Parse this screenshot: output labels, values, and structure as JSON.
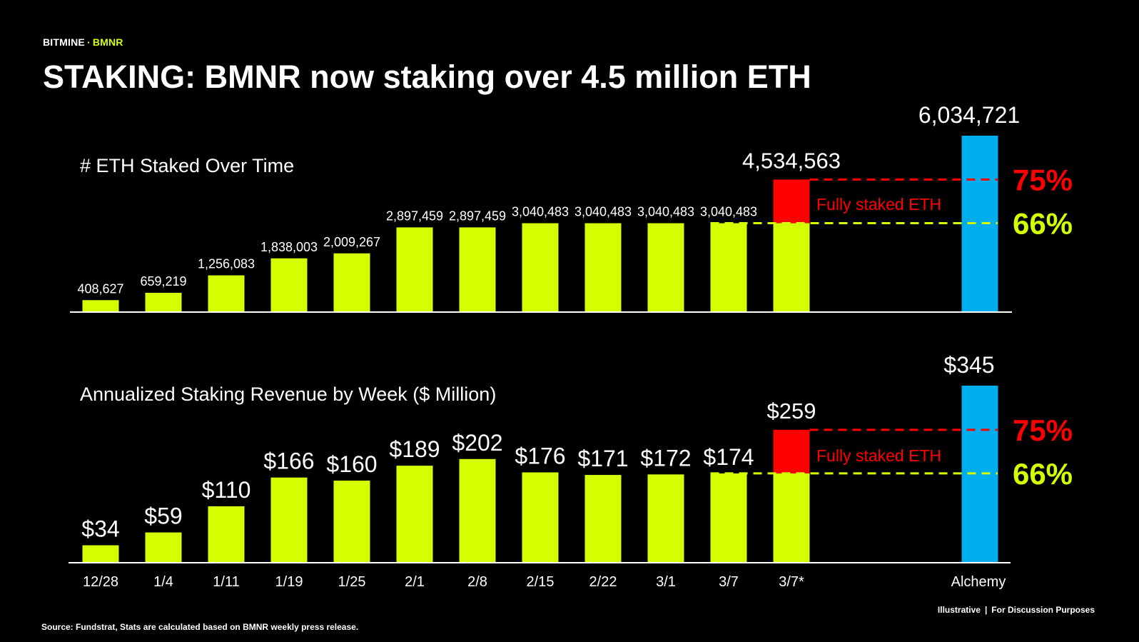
{
  "header": {
    "brand": "BITMINE",
    "separator": "·",
    "ticker": "BMNR",
    "title": "STAKING: BMNR now staking over 4.5 million ETH"
  },
  "footer": {
    "source": "Source: Fundstrat, Stats are calculated based on BMNR weekly press release.",
    "note_left": "Illustrative",
    "note_divider": "|",
    "note_right": "For Discussion Purposes"
  },
  "colors": {
    "bar": "#d4ff00",
    "highlight": "#ff0000",
    "benchmark": "#00aeef",
    "background": "#000000",
    "text": "#ffffff"
  },
  "chart_data": [
    {
      "type": "bar",
      "title": "# ETH Staked Over Time",
      "categories": [
        "12/28",
        "1/4",
        "1/11",
        "1/19",
        "1/25",
        "2/1",
        "2/8",
        "2/15",
        "2/22",
        "3/1",
        "3/7",
        "3/7*"
      ],
      "values": [
        408627,
        659219,
        1256083,
        1838003,
        2009267,
        2897459,
        2897459,
        3040483,
        3040483,
        3040483,
        3040483,
        3040483
      ],
      "labels": [
        "408,627",
        "659,219",
        "1,256,083",
        "1,838,003",
        "2,009,267",
        "2,897,459",
        "2,897,459",
        "3,040,483",
        "3,040,483",
        "3,040,483",
        "3,040,483",
        ""
      ],
      "stacked_top": {
        "category": "3/7*",
        "value": 4534563,
        "label": "4,534,563",
        "annotation": "Fully staked ETH"
      },
      "benchmark": {
        "category": "Alchemy",
        "value": 6034721,
        "label": "6,034,721"
      },
      "reference_lines": [
        {
          "label": "75%",
          "value": 4534563,
          "color": "#ff0000"
        },
        {
          "label": "66%",
          "value": 3040483,
          "color": "#d4ff00"
        }
      ],
      "ylim": [
        0,
        6034721
      ]
    },
    {
      "type": "bar",
      "title": "Annualized Staking Revenue by Week ($ Million)",
      "categories": [
        "12/28",
        "1/4",
        "1/11",
        "1/19",
        "1/25",
        "2/1",
        "2/8",
        "2/15",
        "2/22",
        "3/1",
        "3/7",
        "3/7*"
      ],
      "values": [
        34,
        59,
        110,
        166,
        160,
        189,
        202,
        176,
        171,
        172,
        174,
        174
      ],
      "labels": [
        "$34",
        "$59",
        "$110",
        "$166",
        "$160",
        "$189",
        "$202",
        "$176",
        "$171",
        "$172",
        "$174",
        ""
      ],
      "stacked_top": {
        "category": "3/7*",
        "value": 259,
        "label": "$259",
        "annotation": "Fully staked ETH"
      },
      "benchmark": {
        "category": "Alchemy",
        "value": 345,
        "label": "$345"
      },
      "reference_lines": [
        {
          "label": "75%",
          "value": 259,
          "color": "#ff0000"
        },
        {
          "label": "66%",
          "value": 174,
          "color": "#d4ff00"
        }
      ],
      "ylim": [
        0,
        345
      ]
    }
  ]
}
